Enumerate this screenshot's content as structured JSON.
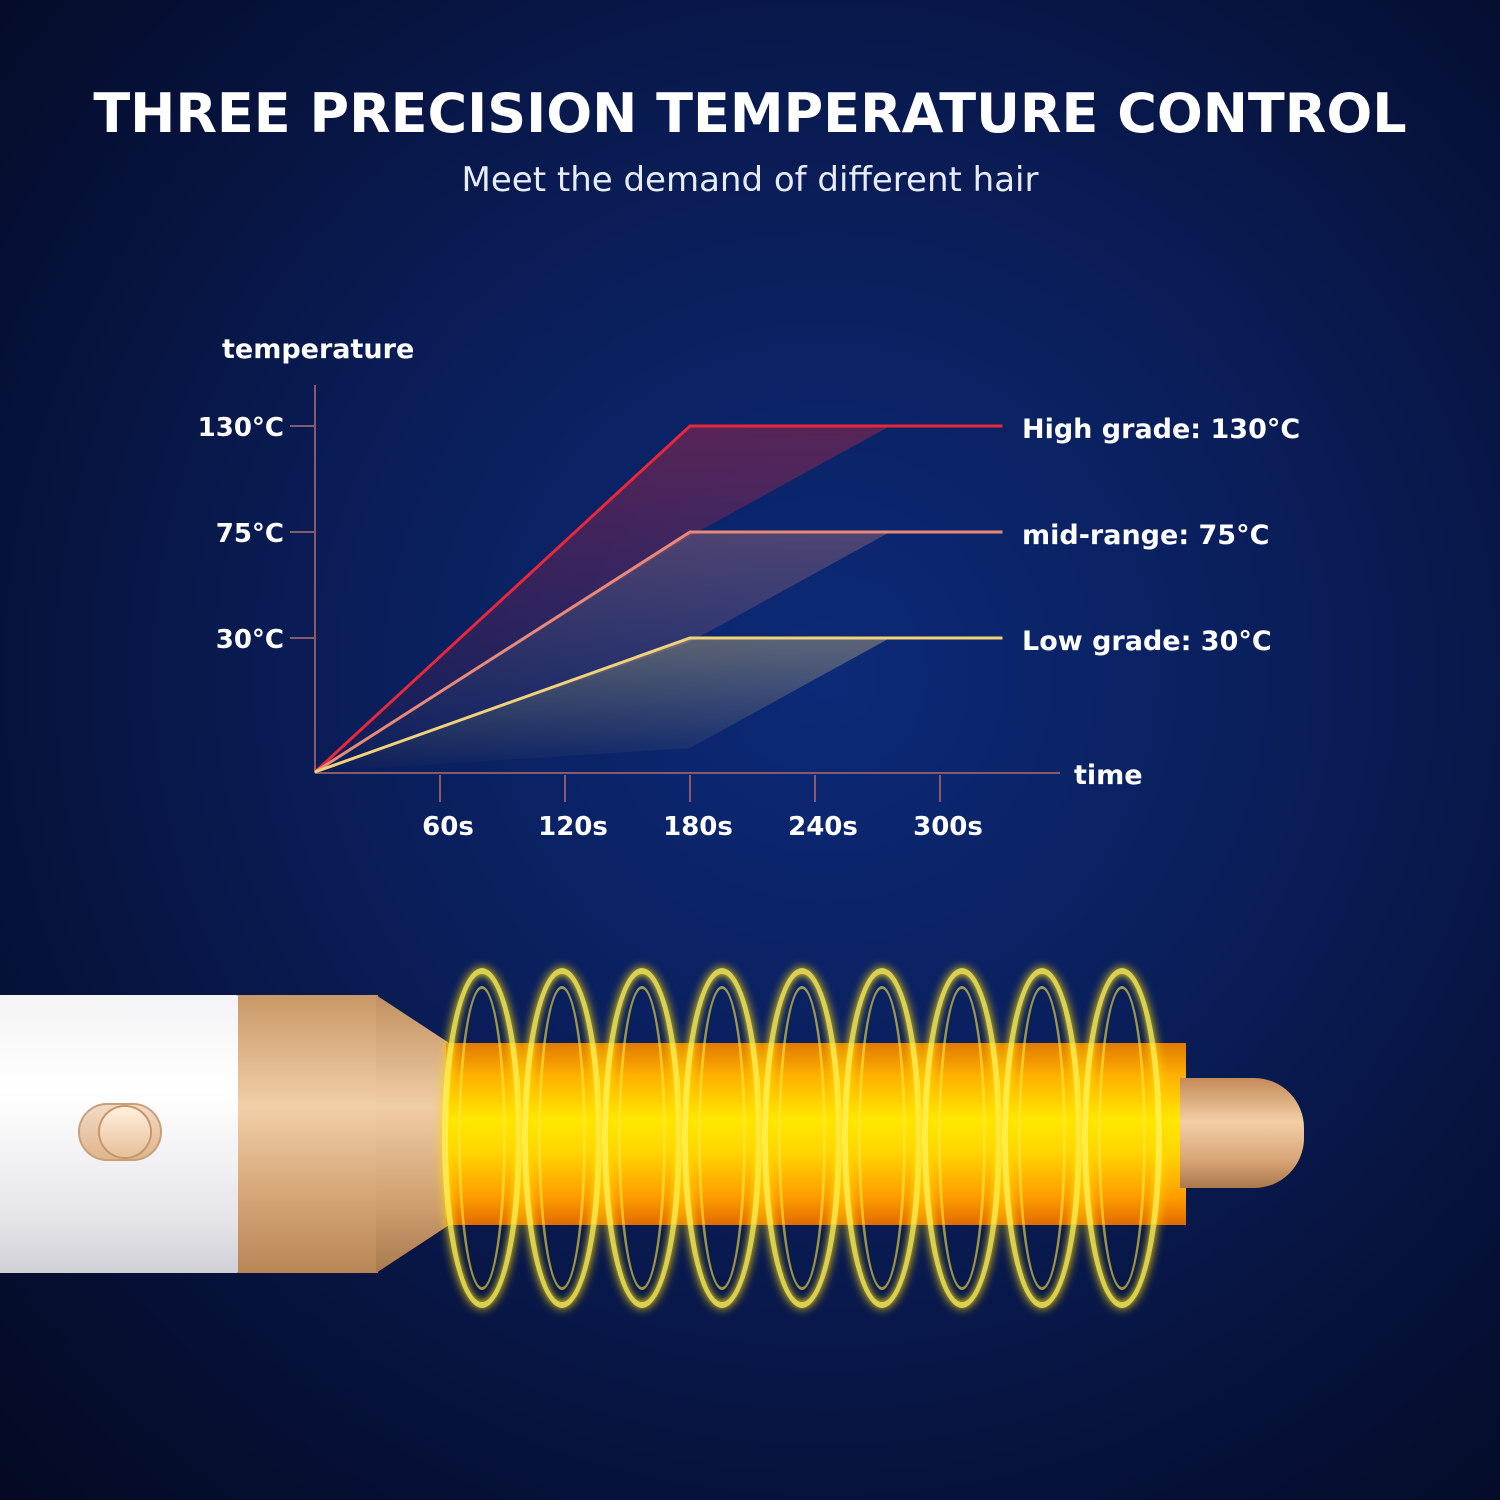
{
  "header": {
    "title": "THREE PRECISION TEMPERATURE CONTROL",
    "subtitle": "Meet the demand of different hair"
  },
  "chart_data": {
    "type": "line",
    "xlabel": "time",
    "ylabel": "temperature",
    "x_ticks": [
      {
        "value": 60,
        "label": "60s"
      },
      {
        "value": 120,
        "label": "120s"
      },
      {
        "value": 180,
        "label": "180s"
      },
      {
        "value": 240,
        "label": "240s"
      },
      {
        "value": 300,
        "label": "300s"
      }
    ],
    "y_ticks": [
      {
        "value": 30,
        "label": "30°C"
      },
      {
        "value": 75,
        "label": "75°C"
      },
      {
        "value": 130,
        "label": "130°C"
      }
    ],
    "xlim": [
      0,
      330
    ],
    "grid": false,
    "series": [
      {
        "name": "High grade:  130°C",
        "color": "#e8283a",
        "points": [
          [
            0,
            0
          ],
          [
            180,
            130
          ],
          [
            330,
            130
          ]
        ]
      },
      {
        "name": "mid-range:  75°C",
        "color": "#e88a7a",
        "points": [
          [
            0,
            0
          ],
          [
            180,
            75
          ],
          [
            330,
            75
          ]
        ]
      },
      {
        "name": "Low grade:  30°C",
        "color": "#f2d27a",
        "points": [
          [
            0,
            0
          ],
          [
            180,
            30
          ],
          [
            330,
            30
          ]
        ]
      }
    ],
    "axis_color": "#8a5a6a"
  },
  "product": {
    "icon": "hair-styler-heating-barrel",
    "rings": 9
  }
}
